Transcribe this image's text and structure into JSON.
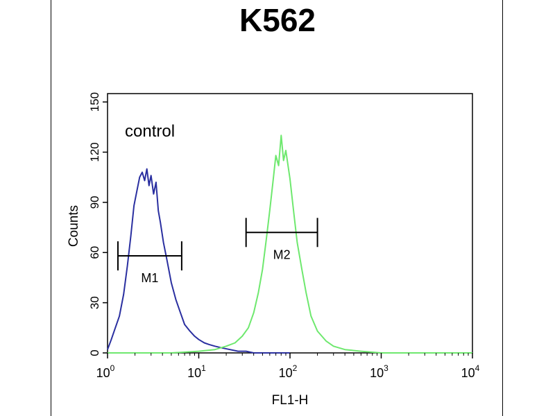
{
  "chart_data": {
    "type": "line",
    "title": "K562",
    "xlabel": "FL1-H",
    "ylabel": "Counts",
    "xscale": "log",
    "xlim": [
      1,
      10000
    ],
    "ylim": [
      0,
      155
    ],
    "yticks": [
      0,
      30,
      60,
      90,
      120,
      150
    ],
    "xticks": [
      {
        "value": 1,
        "base": "10",
        "exp": "0"
      },
      {
        "value": 10,
        "base": "10",
        "exp": "1"
      },
      {
        "value": 100,
        "base": "10",
        "exp": "2"
      },
      {
        "value": 1000,
        "base": "10",
        "exp": "3"
      },
      {
        "value": 10000,
        "base": "10",
        "exp": "4"
      }
    ],
    "grid": false,
    "annotation": "control",
    "colors": {
      "control": "#2a2fa0",
      "sample": "#6ee86e"
    },
    "series": [
      {
        "color_key": "control",
        "x": [
          1.0,
          1.1,
          1.2,
          1.35,
          1.5,
          1.65,
          1.8,
          1.95,
          2.1,
          2.25,
          2.4,
          2.55,
          2.7,
          2.85,
          3.0,
          3.2,
          3.4,
          3.6,
          3.8,
          4.1,
          4.5,
          5.0,
          5.6,
          6.3,
          7.0,
          8.0,
          9.0,
          10.0,
          11.5,
          13.0,
          15.0,
          18.0,
          22.0,
          27.0,
          33.0,
          40.0,
          60.0,
          100.0
        ],
        "y": [
          2,
          8,
          14,
          22,
          35,
          52,
          70,
          88,
          97,
          105,
          108,
          103,
          110,
          100,
          106,
          95,
          102,
          85,
          78,
          66,
          55,
          42,
          32,
          24,
          17,
          13,
          10,
          8,
          6,
          5,
          4,
          3,
          2,
          1,
          1,
          0,
          0,
          0
        ]
      },
      {
        "color_key": "sample",
        "x": [
          1.0,
          5.0,
          10.0,
          15.0,
          20.0,
          25.0,
          30.0,
          35.0,
          40.0,
          45.0,
          50.0,
          55.0,
          60.0,
          65.0,
          70.0,
          75.0,
          80.0,
          85.0,
          90.0,
          100.0,
          110.0,
          120.0,
          135.0,
          150.0,
          170.0,
          200.0,
          250.0,
          300.0,
          400.0,
          600.0,
          1000.0,
          10000.0
        ],
        "y": [
          0,
          0,
          1,
          2,
          4,
          6,
          10,
          15,
          24,
          36,
          50,
          68,
          85,
          102,
          118,
          112,
          130,
          115,
          121,
          104,
          84,
          66,
          50,
          36,
          22,
          13,
          7,
          4,
          2,
          1,
          0,
          0
        ]
      }
    ],
    "markers": [
      {
        "label": "M1",
        "x1": 1.3,
        "x2": 6.5,
        "y": 58
      },
      {
        "label": "M2",
        "x1": 33,
        "x2": 200,
        "y": 72
      }
    ]
  }
}
